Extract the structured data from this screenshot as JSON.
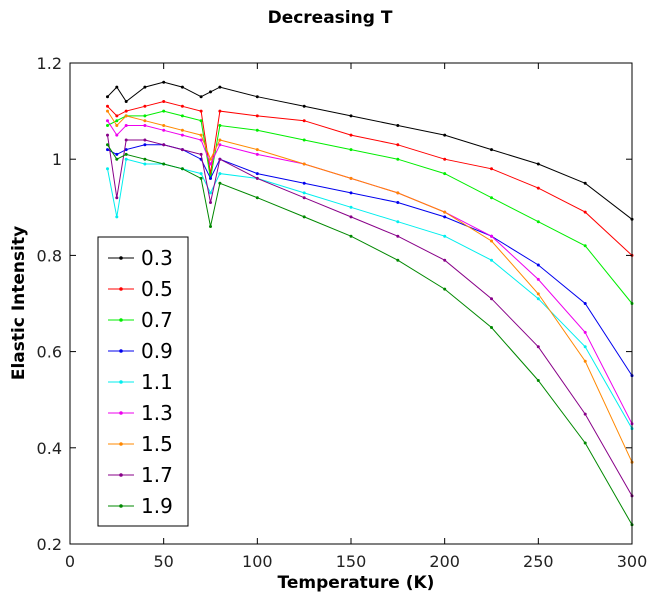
{
  "chart_data": {
    "type": "line",
    "title": "Decreasing T",
    "xlabel": "Temperature (K)",
    "ylabel": "Elastic Intensity",
    "xlim": [
      0,
      300
    ],
    "ylim": [
      0.2,
      1.2
    ],
    "xticks": [
      0,
      50,
      100,
      150,
      200,
      250,
      300
    ],
    "xtick_labels": [
      "0",
      "50",
      "100",
      "150",
      "200",
      "250",
      "300"
    ],
    "yticks": [
      0.2,
      0.4,
      0.6,
      0.8,
      1.0,
      1.2
    ],
    "ytick_labels": [
      "0.2",
      "0.4",
      "0.6",
      "0.8",
      "1",
      "1.2"
    ],
    "grid": false,
    "legend_position": "bottom-left",
    "x": [
      20,
      25,
      30,
      40,
      50,
      60,
      70,
      75,
      80,
      100,
      125,
      150,
      175,
      200,
      225,
      250,
      275,
      300
    ],
    "series": [
      {
        "name": "0.3",
        "color": "#000000",
        "values": [
          1.13,
          1.15,
          1.12,
          1.15,
          1.16,
          1.15,
          1.13,
          1.14,
          1.15,
          1.13,
          1.11,
          1.09,
          1.07,
          1.05,
          1.02,
          0.99,
          0.95,
          0.875
        ]
      },
      {
        "name": "0.5",
        "color": "#ff0000",
        "values": [
          1.11,
          1.09,
          1.1,
          1.11,
          1.12,
          1.11,
          1.1,
          0.97,
          1.1,
          1.09,
          1.08,
          1.05,
          1.03,
          1.0,
          0.98,
          0.94,
          0.89,
          0.8
        ]
      },
      {
        "name": "0.7",
        "color": "#00ee00",
        "values": [
          1.07,
          1.08,
          1.09,
          1.09,
          1.1,
          1.09,
          1.08,
          0.96,
          1.07,
          1.06,
          1.04,
          1.02,
          1.0,
          0.97,
          0.92,
          0.87,
          0.82,
          0.7
        ]
      },
      {
        "name": "0.9",
        "color": "#0000ee",
        "values": [
          1.02,
          1.01,
          1.02,
          1.03,
          1.03,
          1.02,
          1.0,
          0.96,
          1.0,
          0.97,
          0.95,
          0.93,
          0.91,
          0.88,
          0.84,
          0.78,
          0.7,
          0.55
        ]
      },
      {
        "name": "1.1",
        "color": "#00eeee",
        "values": [
          0.98,
          0.88,
          1.0,
          0.99,
          0.99,
          0.98,
          0.97,
          0.93,
          0.97,
          0.96,
          0.93,
          0.9,
          0.87,
          0.84,
          0.79,
          0.71,
          0.61,
          0.44
        ]
      },
      {
        "name": "1.3",
        "color": "#ee00ee",
        "values": [
          1.08,
          1.05,
          1.07,
          1.07,
          1.06,
          1.05,
          1.04,
          0.99,
          1.03,
          1.01,
          0.99,
          0.96,
          0.93,
          0.89,
          0.84,
          0.75,
          0.64,
          0.45
        ]
      },
      {
        "name": "1.5",
        "color": "#ff8800",
        "values": [
          1.1,
          1.07,
          1.09,
          1.08,
          1.07,
          1.06,
          1.05,
          1.0,
          1.04,
          1.02,
          0.99,
          0.96,
          0.93,
          0.89,
          0.83,
          0.72,
          0.58,
          0.37
        ]
      },
      {
        "name": "1.7",
        "color": "#880088",
        "values": [
          1.05,
          0.92,
          1.04,
          1.04,
          1.03,
          1.02,
          1.01,
          0.91,
          1.0,
          0.96,
          0.92,
          0.88,
          0.84,
          0.79,
          0.71,
          0.61,
          0.47,
          0.3
        ]
      },
      {
        "name": "1.9",
        "color": "#008800",
        "values": [
          1.03,
          1.0,
          1.01,
          1.0,
          0.99,
          0.98,
          0.96,
          0.86,
          0.95,
          0.92,
          0.88,
          0.84,
          0.79,
          0.73,
          0.65,
          0.54,
          0.41,
          0.24
        ]
      }
    ]
  }
}
